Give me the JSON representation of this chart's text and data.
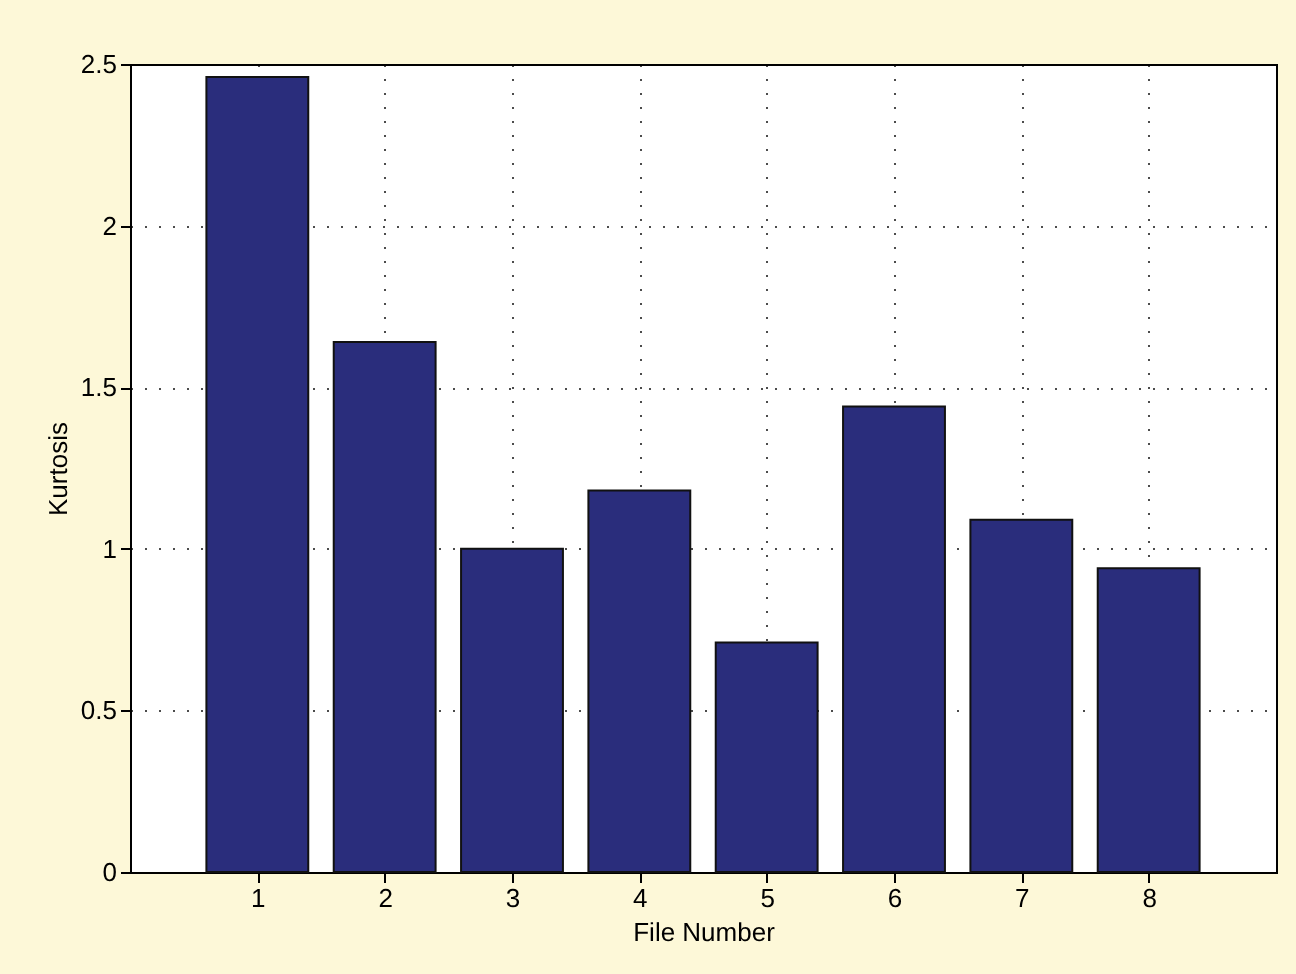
{
  "chart_data": {
    "type": "bar",
    "xlabel": "File Number",
    "ylabel": "Kurtosis",
    "x": [
      1,
      2,
      3,
      4,
      5,
      6,
      7,
      8
    ],
    "values": [
      2.46,
      1.64,
      1.0,
      1.18,
      0.71,
      1.44,
      1.09,
      0.94
    ],
    "color": "#2a2d7c",
    "xlim": [
      0,
      9
    ],
    "xticks": [
      1,
      2,
      3,
      4,
      5,
      6,
      7,
      8
    ],
    "ylim": [
      0,
      2.5
    ],
    "yticks": [
      {
        "value": 0,
        "label": "0"
      },
      0.5,
      {
        "value": 1,
        "label": "1"
      },
      1.5,
      {
        "value": 2,
        "label": "2"
      },
      2.5
    ],
    "grid": true
  }
}
